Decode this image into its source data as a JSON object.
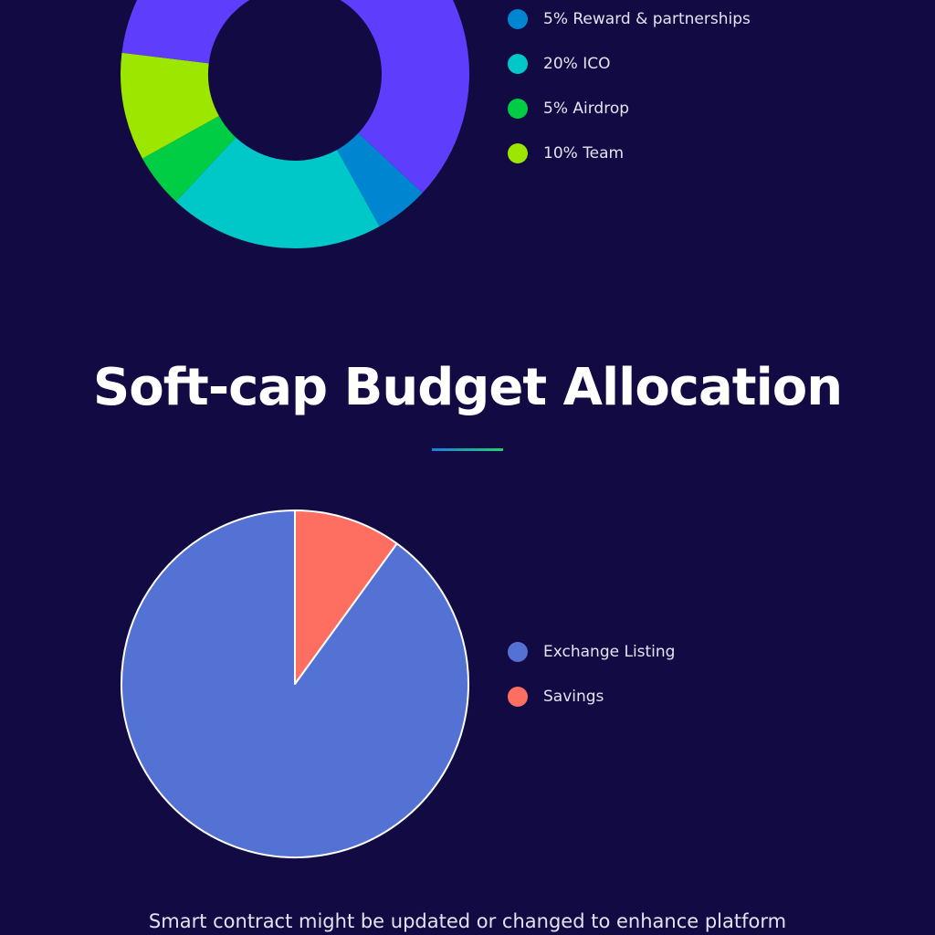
{
  "chart_data": [
    {
      "type": "pie",
      "variant": "donut",
      "title": "",
      "slices": [
        {
          "label": "5% Reward & partnerships",
          "value": 5,
          "color": "#0086d1"
        },
        {
          "label": "20% ICO",
          "value": 20,
          "color": "#00c8c8"
        },
        {
          "label": "5% Airdrop",
          "value": 5,
          "color": "#00cc44"
        },
        {
          "label": "10% Team",
          "value": 10,
          "color": "#9ce600"
        },
        {
          "label": "",
          "value": 60,
          "color": "#5f3dfd"
        }
      ],
      "legend": [
        {
          "label": "5% Reward & partnerships",
          "color": "#0086d1"
        },
        {
          "label": "20% ICO",
          "color": "#00c8c8"
        },
        {
          "label": "5% Airdrop",
          "color": "#00cc44"
        },
        {
          "label": "10% Team",
          "color": "#9ce600"
        }
      ],
      "legend_position": "right"
    },
    {
      "type": "pie",
      "title": "Soft-cap Budget Allocation",
      "slices": [
        {
          "label": "Exchange Listing",
          "value": 90,
          "color": "#5472d3"
        },
        {
          "label": "Savings",
          "value": 10,
          "color": "#ff6f61"
        }
      ],
      "legend": [
        {
          "label": "Exchange Listing",
          "color": "#5472d3"
        },
        {
          "label": "Savings",
          "color": "#ff6f61"
        }
      ],
      "legend_position": "right"
    }
  ],
  "section": {
    "title": "Soft-cap Budget Allocation"
  },
  "footer": {
    "note": "Smart contract might be updated or changed to enhance platform"
  },
  "colors": {
    "background": "#120a43",
    "accent_start": "#1f7ce0",
    "accent_end": "#1fd36a"
  }
}
